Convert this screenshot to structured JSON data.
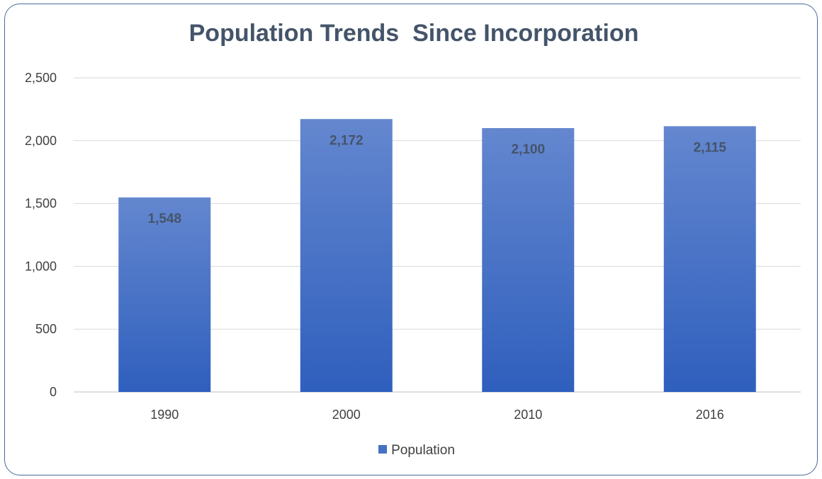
{
  "chart_data": {
    "type": "bar",
    "title": "Population Trends  Since Incorporation",
    "categories": [
      "1990",
      "2000",
      "2010",
      "2016"
    ],
    "series": [
      {
        "name": "Population",
        "values": [
          1548,
          2172,
          2100,
          2115
        ]
      }
    ],
    "data_labels": [
      "1,548",
      "2,172",
      "2,100",
      "2,115"
    ],
    "y_ticks": [
      "0",
      "500",
      "1,000",
      "1,500",
      "2,000",
      "2,500"
    ],
    "ylim": [
      0,
      2500
    ],
    "grid": true,
    "legend_position": "bottom",
    "colors": {
      "bar_top": "#6487cf",
      "bar_bottom": "#2f5fbd",
      "gridline": "#d9d9d9",
      "axis": "#bfbfbf",
      "frame": "#4a6a9c"
    }
  }
}
